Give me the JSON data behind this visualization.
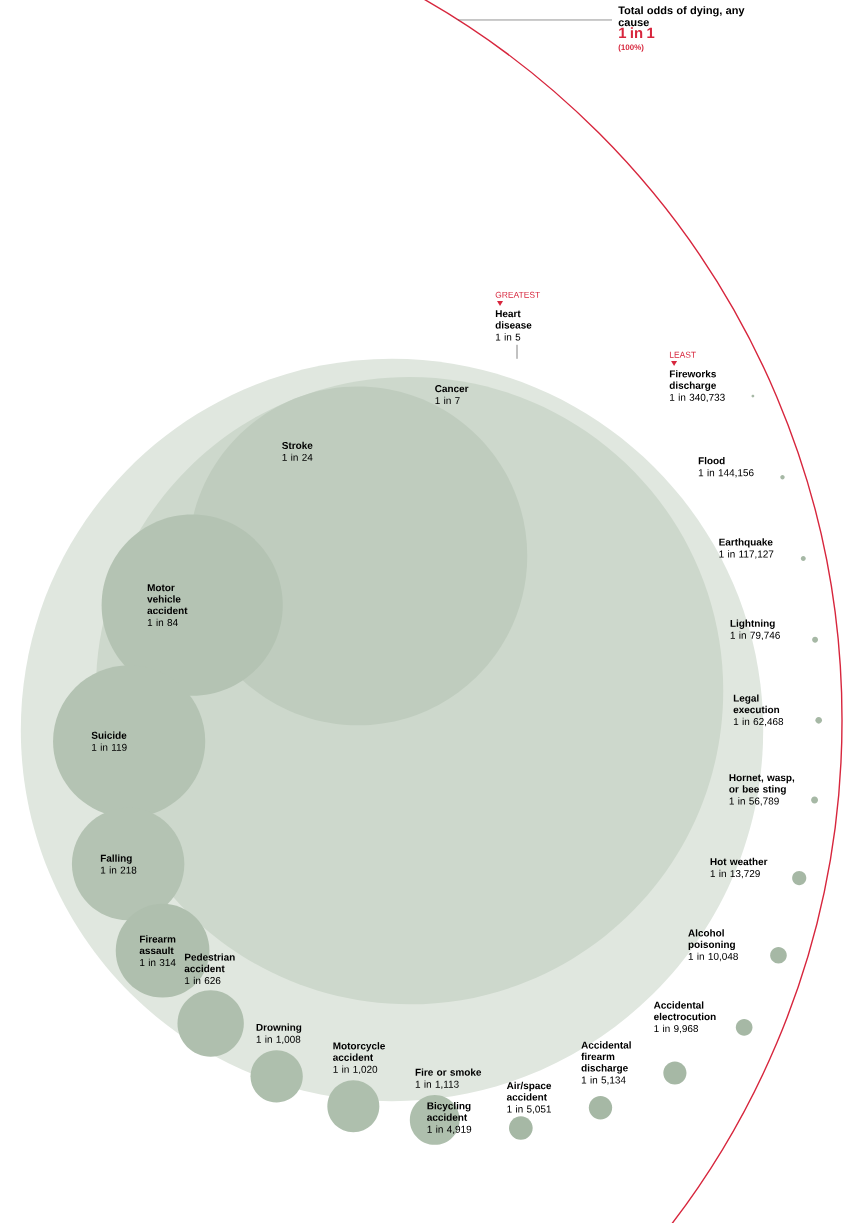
{
  "chart_data": {
    "type": "other",
    "categories": [
      "Total odds of dying, any cause",
      "Heart disease",
      "Cancer",
      "Stroke",
      "Motor vehicle accident",
      "Suicide",
      "Falling",
      "Firearm assault",
      "Pedestrian accident",
      "Drowning",
      "Motorcycle accident",
      "Fire or smoke",
      "Bicycling accident",
      "Air/space accident",
      "Accidental firearm discharge",
      "Accidental electrocution",
      "Alcohol poisoning",
      "Hot weather",
      "Hornet, wasp, or bee sting",
      "Legal execution",
      "Lightning",
      "Earthquake",
      "Flood",
      "Fireworks discharge"
    ],
    "values": [
      1,
      5,
      7,
      24,
      84,
      119,
      218,
      314,
      626,
      1008,
      1020,
      1113,
      4919,
      5051,
      5134,
      9968,
      10048,
      13729,
      56789,
      62468,
      79746,
      117127,
      144156,
      340733
    ],
    "value_labels": [
      "1 in 1",
      "1 in 5",
      "1 in 7",
      "1 in 24",
      "1 in 84",
      "1 in 119",
      "1 in 218",
      "1 in 314",
      "1 in 626",
      "1 in 1,008",
      "1 in 1,020",
      "1 in 1,113",
      "1 in 4,919",
      "1 in 5,051",
      "1 in 5,134",
      "1 in 9,968",
      "1 in 10,048",
      "1 in 13,729",
      "1 in 56,789",
      "1 in 62,468",
      "1 in 79,746",
      "1 in 117,127",
      "1 in 144,156",
      "1 in 340,733"
    ],
    "colors": [
      "#d7263d",
      "#e0e7df",
      "#cdd8cc",
      "#bfccbe",
      "#b4c3b3",
      "#b4c3b3",
      "#b4c3b3",
      "#afbfae",
      "#afbfae",
      "#aebfad",
      "#aebfad",
      "#aebfad",
      "#a6b8a5",
      "#a6b8a5",
      "#a6b8a5",
      "#a6b8a5",
      "#a6b8a5",
      "#a6b8a5",
      "#a6b8a5",
      "#a6b8a5",
      "#a6b8a5",
      "#a6b8a5",
      "#a6b8a5",
      "#a6b8a5"
    ],
    "annotations": [
      "(100%)",
      "GREATEST",
      "LEAST"
    ]
  }
}
